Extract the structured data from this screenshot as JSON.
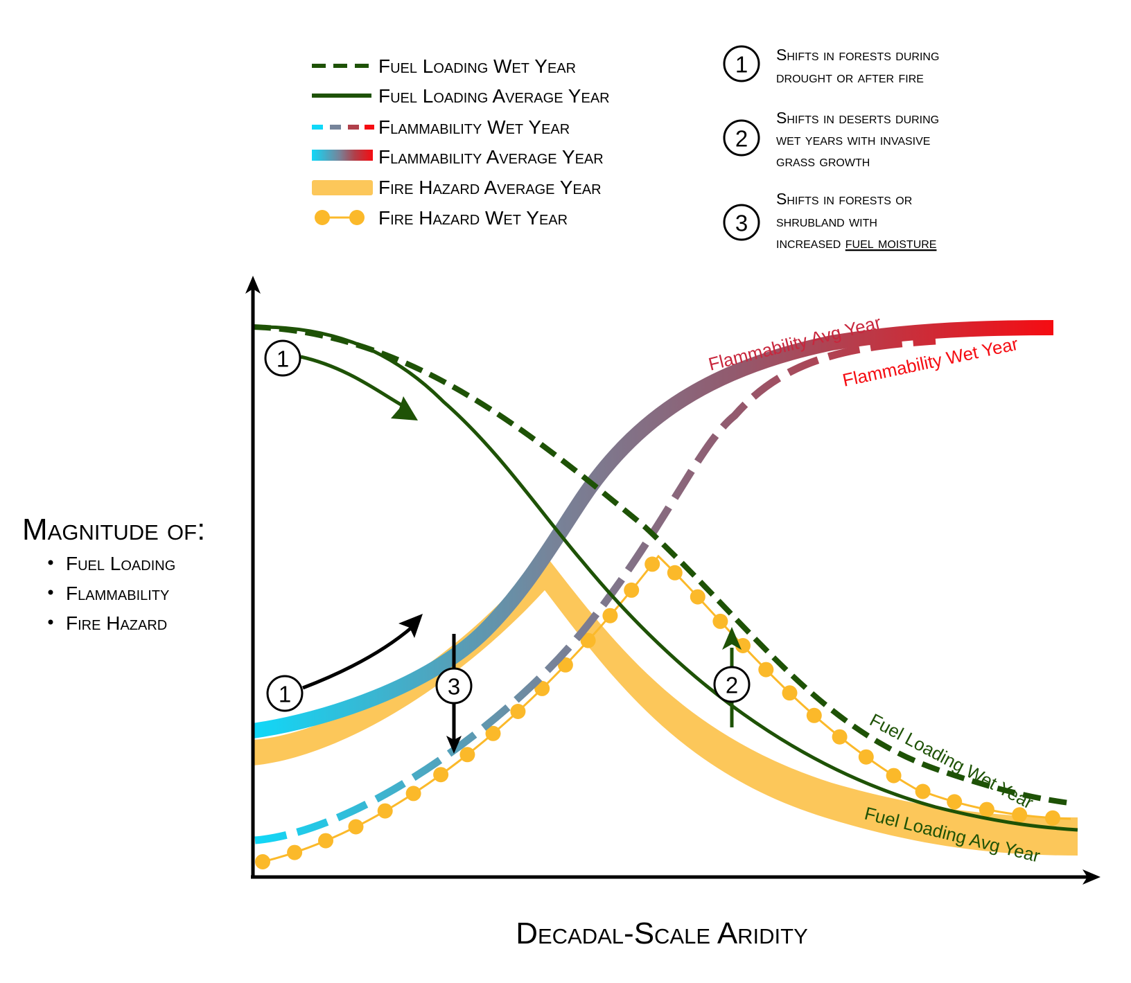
{
  "legend": [
    {
      "icon": "dashed-dark-green-line",
      "label": "Fuel Loading Wet Year"
    },
    {
      "icon": "solid-dark-green-line",
      "label": "Fuel Loading Average Year"
    },
    {
      "icon": "dashed-cyan-to-red-line",
      "label": "Flammability Wet Year"
    },
    {
      "icon": "solid-cyan-to-red-band",
      "label": "Flammability Average Year"
    },
    {
      "icon": "thick-orange-band",
      "label": "Fire Hazard Average Year"
    },
    {
      "icon": "orange-dotted-line",
      "label": "Fire Hazard Wet Year"
    }
  ],
  "shifts": [
    {
      "number": "1",
      "lines": [
        "Shifts in forests during",
        "drought or after fire"
      ]
    },
    {
      "number": "2",
      "lines": [
        "Shifts in deserts during",
        "wet years with invasive",
        "grass growth"
      ]
    },
    {
      "number": "3",
      "lines": [
        "Shifts in forests or",
        "shrubland with"
      ],
      "prefix": "increased ",
      "underlined": "fuel moisture"
    }
  ],
  "y_axis": {
    "title": "Magnitude of:",
    "items": [
      "Fuel Loading",
      "Flammability",
      "Fire Hazard"
    ]
  },
  "x_axis": {
    "title": "Decadal-Scale Aridity"
  },
  "curve_labels": {
    "flam_avg": "Flammability Avg Year",
    "flam_wet": "Flammability Wet Year",
    "fuel_wet": "Fuel Loading Wet Year",
    "fuel_avg": "Fuel Loading Avg Year"
  },
  "markers": {
    "m1a": "1",
    "m1b": "1",
    "m2": "2",
    "m3": "3"
  },
  "colors": {
    "dark_green": "#1e5206",
    "cyan": "#10d8f8",
    "red": "#f50c12",
    "mid_blue_gray": "#76849a",
    "mauve": "#925a6e",
    "orange": "#fcc75a",
    "orange_dot": "#fbb92a"
  }
}
